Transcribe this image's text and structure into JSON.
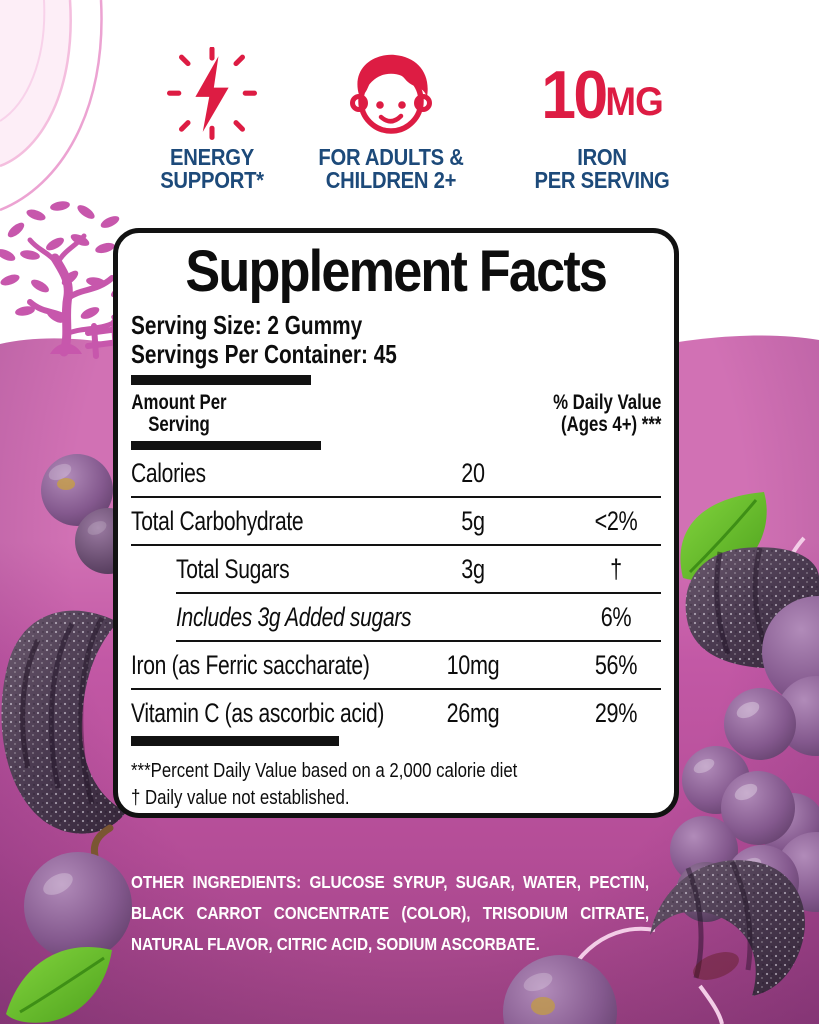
{
  "colors": {
    "accent_red": "#dd1c43",
    "accent_blue": "#1d4a7a",
    "background_pink": "#c155a2",
    "panel_bg": "#ffffff",
    "panel_border": "#121212",
    "ingredients_text": "#ffffff"
  },
  "badges": [
    {
      "icon": "lightning-icon",
      "line1": "ENERGY",
      "line2": "SUPPORT*"
    },
    {
      "icon": "child-face-icon",
      "line1": "FOR ADULTS &",
      "line2": "CHILDREN 2+"
    },
    {
      "value": "10",
      "unit": "MG",
      "line1": "IRON",
      "line2": "PER SERVING"
    }
  ],
  "panel": {
    "title": "Supplement Facts",
    "serving_size": "Serving Size: 2 Gummy",
    "servings_per_container": "Servings Per Container: 45",
    "columns": {
      "amount_line1": "Amount Per",
      "amount_line2": "Serving",
      "dv_line1": "% Daily Value",
      "dv_line2": "(Ages 4+) ***"
    },
    "rows": [
      {
        "name": "Calories",
        "amount": "20",
        "dv": "",
        "indent": false,
        "italic": false,
        "divider_after": "full"
      },
      {
        "name": "Total Carbohydrate",
        "amount": "5g",
        "dv": "<2%",
        "indent": false,
        "italic": false,
        "divider_after": "full"
      },
      {
        "name": "Total Sugars",
        "amount": "3g",
        "dv": "†",
        "indent": true,
        "italic": false,
        "divider_after": "indent"
      },
      {
        "name": "Includes 3g Added sugars",
        "amount": "",
        "dv": "6%",
        "indent": true,
        "italic": true,
        "divider_after": "indent"
      },
      {
        "name": "Iron (as Ferric saccharate)",
        "amount": "10mg",
        "dv": "56%",
        "indent": false,
        "italic": false,
        "divider_after": "full"
      },
      {
        "name": "Vitamin C (as ascorbic acid)",
        "amount": "26mg",
        "dv": "29%",
        "indent": false,
        "italic": false,
        "divider_after": "none"
      }
    ],
    "footnotes": [
      "***Percent Daily Value based on a 2,000 calorie diet",
      "† Daily value not established."
    ]
  },
  "other_ingredients": {
    "label": "OTHER INGREDIENTS:",
    "text": " GLUCOSE SYRUP, SUGAR, WATER, PECTIN, BLACK CARROT CONCENTRATE (COLOR), TRISODIUM CITRATE, NATURAL FLAVOR, CITRIC ACID, SODIUM ASCORBATE."
  },
  "decorations": {
    "scene": "pink orchard hill with tree and fence",
    "fruit": "purple grapes",
    "candy": "sugar-coated purple gummy slices",
    "foliage": "green leaves"
  }
}
